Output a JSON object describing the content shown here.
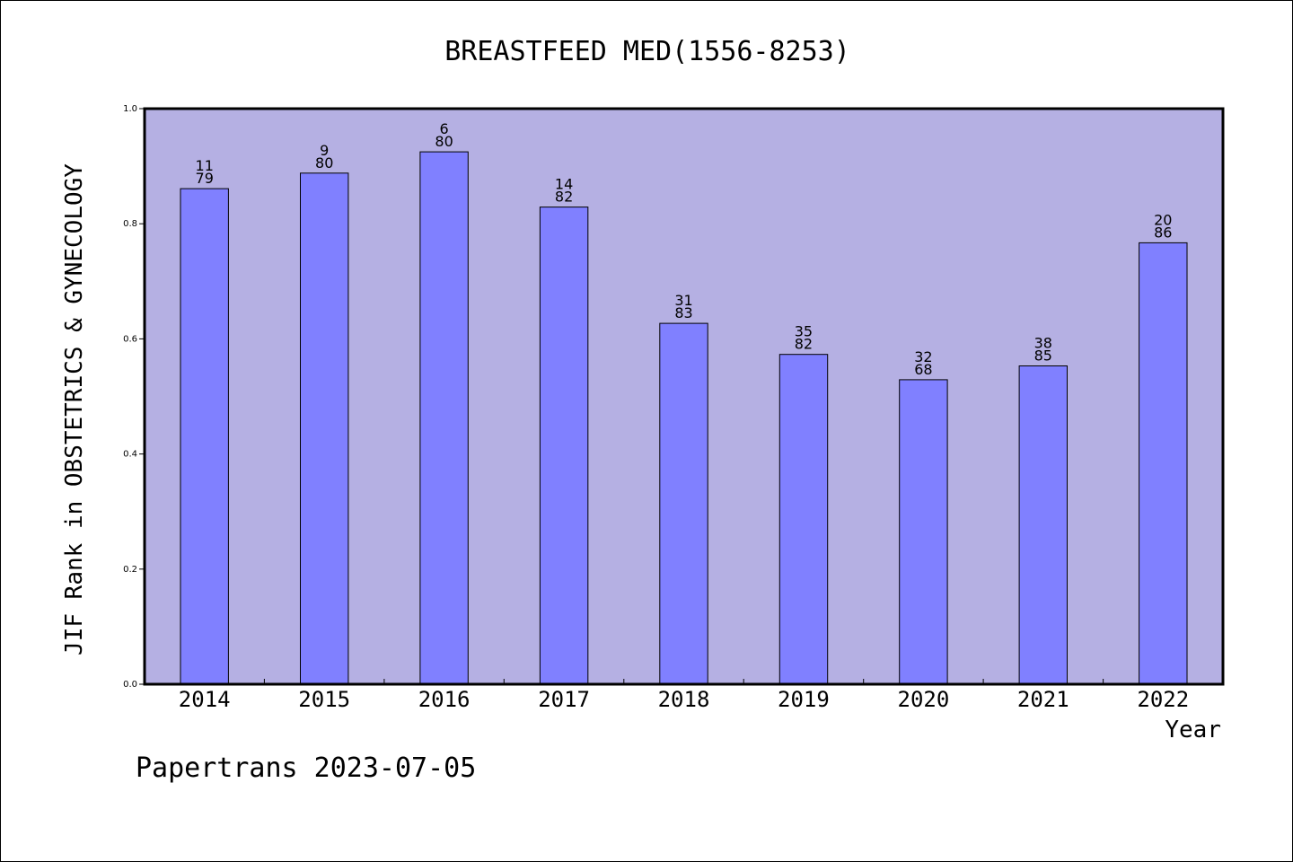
{
  "chart_data": {
    "type": "bar",
    "title": "BREASTFEED MED(1556-8253)",
    "xlabel": "Year",
    "ylabel": "JIF Rank in OBSTETRICS & GYNECOLOGY",
    "categories": [
      "2014",
      "2015",
      "2016",
      "2017",
      "2018",
      "2019",
      "2020",
      "2021",
      "2022"
    ],
    "values": [
      0.861,
      0.888,
      0.925,
      0.829,
      0.627,
      0.573,
      0.529,
      0.553,
      0.767
    ],
    "rank": [
      "11",
      "9",
      "6",
      "14",
      "31",
      "35",
      "32",
      "38",
      "20"
    ],
    "total": [
      "79",
      "80",
      "80",
      "82",
      "83",
      "82",
      "68",
      "85",
      "86"
    ],
    "ylim": [
      0,
      1.0
    ],
    "yticks": [
      "0.0",
      "0.2",
      "0.4",
      "0.6",
      "0.8",
      "1.0"
    ],
    "grid": false,
    "colors": {
      "plot_background": "#b5b0e3",
      "bar_fill": "#8080ff",
      "bar_stroke": "#000000"
    }
  },
  "footer": "Papertrans 2023-07-05"
}
